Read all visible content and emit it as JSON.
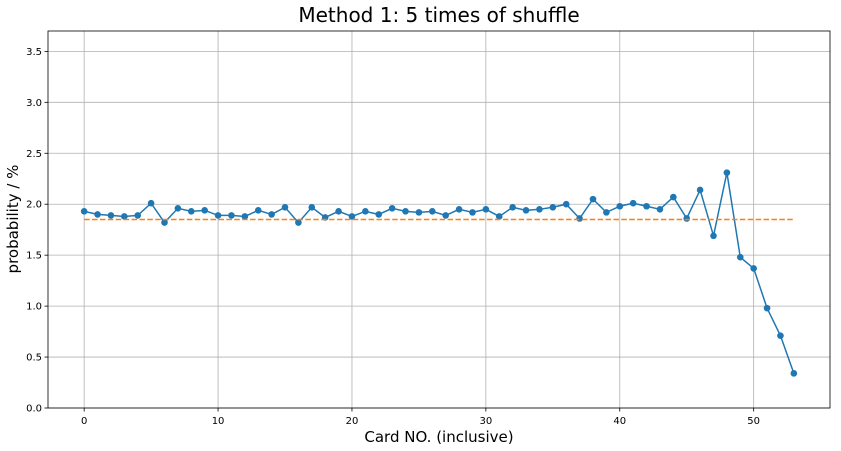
{
  "chart_data": {
    "type": "line",
    "title": "Method 1: 5 times of shuffle",
    "xlabel": "Card NO. (inclusive)",
    "ylabel": "probability / %",
    "xlim": [
      -2.7,
      55.7
    ],
    "ylim": [
      0.0,
      3.7
    ],
    "xticks": [
      0,
      10,
      20,
      30,
      40,
      50
    ],
    "yticks": [
      0.0,
      0.5,
      1.0,
      1.5,
      2.0,
      2.5,
      3.0,
      3.5
    ],
    "xtick_labels": [
      "0",
      "10",
      "20",
      "30",
      "40",
      "50"
    ],
    "ytick_labels": [
      "0.0",
      "0.5",
      "1.0",
      "1.5",
      "2.0",
      "2.5",
      "3.0",
      "3.5"
    ],
    "grid": true,
    "series": [
      {
        "kind": "line-marker",
        "color": "#1f77b4",
        "x": [
          0,
          1,
          2,
          3,
          4,
          5,
          6,
          7,
          8,
          9,
          10,
          11,
          12,
          13,
          14,
          15,
          16,
          17,
          18,
          19,
          20,
          21,
          22,
          23,
          24,
          25,
          26,
          27,
          28,
          29,
          30,
          31,
          32,
          33,
          34,
          35,
          36,
          37,
          38,
          39,
          40,
          41,
          42,
          43,
          44,
          45,
          46,
          47,
          48,
          49,
          50,
          51,
          52,
          53
        ],
        "values": [
          1.93,
          1.9,
          1.89,
          1.88,
          1.89,
          2.01,
          1.82,
          1.96,
          1.93,
          1.94,
          1.89,
          1.89,
          1.88,
          1.94,
          1.9,
          1.97,
          1.82,
          1.97,
          1.87,
          1.93,
          1.88,
          1.93,
          1.9,
          1.96,
          1.93,
          1.92,
          1.93,
          1.89,
          1.95,
          1.92,
          1.95,
          1.88,
          1.97,
          1.94,
          1.95,
          1.97,
          2.0,
          1.86,
          2.05,
          1.92,
          1.98,
          2.01,
          1.98,
          1.95,
          2.07,
          1.86,
          2.14,
          1.69,
          2.31,
          1.48,
          1.37,
          0.98,
          0.71,
          0.34
        ]
      },
      {
        "kind": "dashed-line",
        "color": "#ff7f0e",
        "x": [
          0,
          53
        ],
        "values": [
          1.85,
          1.85
        ]
      }
    ]
  }
}
